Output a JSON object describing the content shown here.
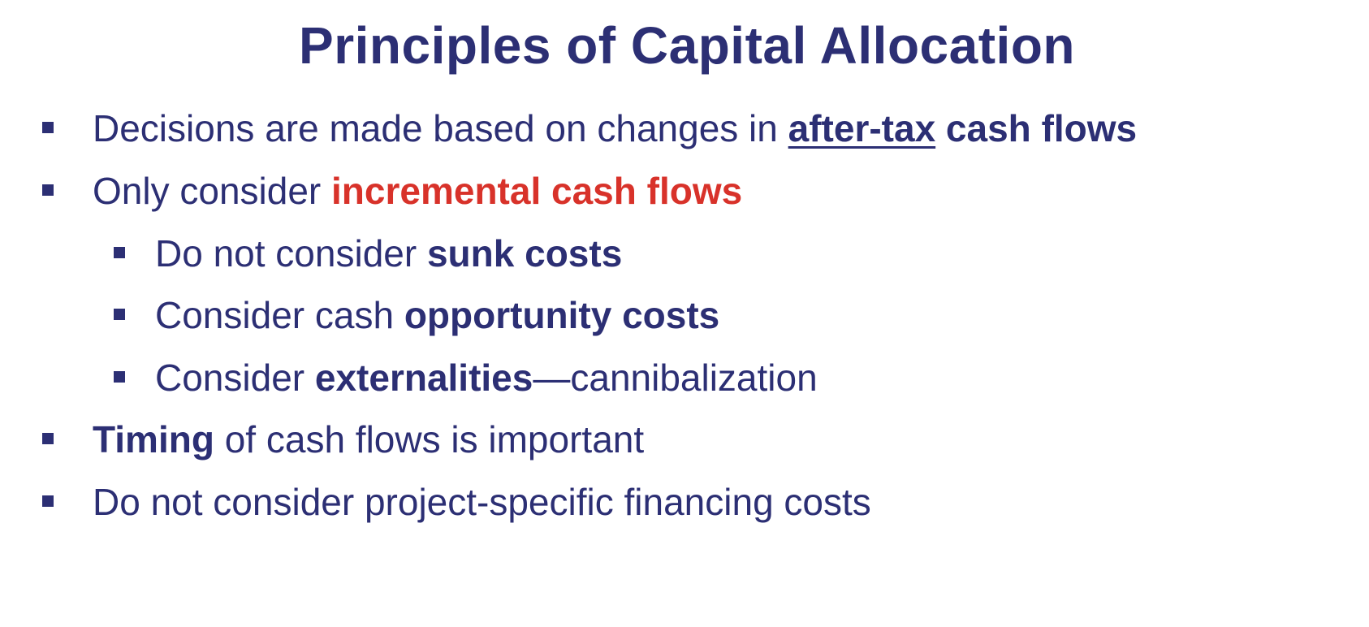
{
  "title": "Principles of Capital Allocation",
  "bullets": [
    {
      "level": 1,
      "parts": [
        {
          "text": "Decisions are made based on changes in "
        },
        {
          "text": "after-tax"
        },
        {
          "text": " cash flows"
        }
      ]
    },
    {
      "level": 1,
      "parts": [
        {
          "text": "Only consider "
        },
        {
          "text": "incremental cash flows"
        }
      ]
    },
    {
      "level": 2,
      "parts": [
        {
          "text": "Do not consider "
        },
        {
          "text": "sunk costs"
        }
      ]
    },
    {
      "level": 2,
      "parts": [
        {
          "text": "Consider cash "
        },
        {
          "text": "opportunity costs"
        }
      ]
    },
    {
      "level": 2,
      "parts": [
        {
          "text": "Consider "
        },
        {
          "text": "externalities"
        },
        {
          "text": "—cannibalization"
        }
      ]
    },
    {
      "level": 1,
      "parts": [
        {
          "text": "Timing"
        },
        {
          "text": " of cash flows is important"
        }
      ]
    },
    {
      "level": 1,
      "parts": [
        {
          "text": "Do not consider project-specific financing costs"
        }
      ]
    }
  ],
  "colors": {
    "text": "#2c2f74",
    "emphasis_red": "#d8322a",
    "background": "#ffffff"
  },
  "icons": {
    "bullet": "square-bullet-icon"
  }
}
